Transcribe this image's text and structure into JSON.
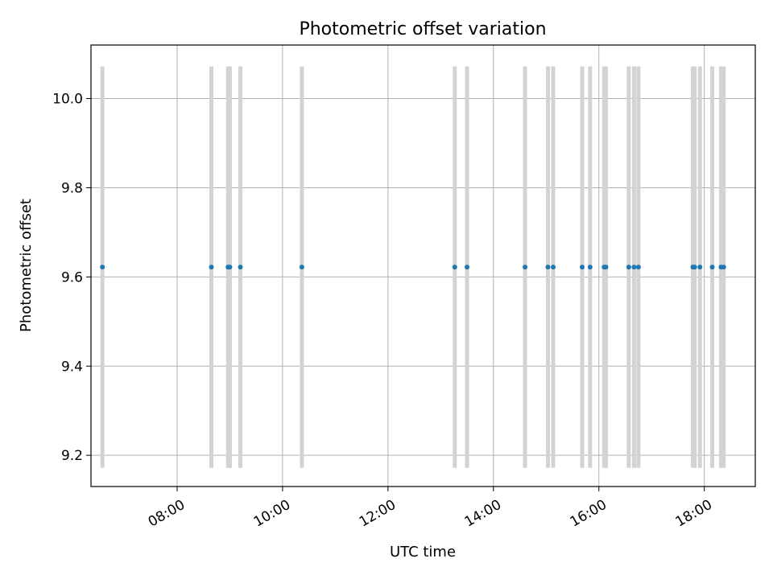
{
  "chart_data": {
    "type": "scatter",
    "title": "Photometric offset variation",
    "xlabel": "UTC time",
    "ylabel": "Photometric offset",
    "xlim": [
      "06:22",
      "18:58"
    ],
    "ylim": [
      9.13,
      10.12
    ],
    "grid": true,
    "x_ticks": [
      "08:00",
      "10:00",
      "12:00",
      "14:00",
      "16:00",
      "18:00"
    ],
    "y_ticks": [
      "9.2",
      "9.4",
      "9.6",
      "9.8",
      "10.0"
    ],
    "point_color": "#1f77b4",
    "errorbar_color": "#d3d3d3",
    "series": [
      {
        "points": [
          {
            "x": "06:35",
            "y": 9.622,
            "err": 0.45
          },
          {
            "x": "08:39",
            "y": 9.622,
            "err": 0.45
          },
          {
            "x": "08:58",
            "y": 9.622,
            "err": 0.45
          },
          {
            "x": "09:00",
            "y": 9.622,
            "err": 0.45
          },
          {
            "x": "09:12",
            "y": 9.622,
            "err": 0.45
          },
          {
            "x": "10:22",
            "y": 9.622,
            "err": 0.45
          },
          {
            "x": "13:16",
            "y": 9.622,
            "err": 0.45
          },
          {
            "x": "13:30",
            "y": 9.622,
            "err": 0.45
          },
          {
            "x": "14:36",
            "y": 9.622,
            "err": 0.45
          },
          {
            "x": "15:02",
            "y": 9.622,
            "err": 0.45
          },
          {
            "x": "15:08",
            "y": 9.622,
            "err": 0.45
          },
          {
            "x": "15:41",
            "y": 9.622,
            "err": 0.45
          },
          {
            "x": "15:50",
            "y": 9.622,
            "err": 0.45
          },
          {
            "x": "16:06",
            "y": 9.622,
            "err": 0.45
          },
          {
            "x": "16:08",
            "y": 9.622,
            "err": 0.45
          },
          {
            "x": "16:34",
            "y": 9.622,
            "err": 0.45
          },
          {
            "x": "16:40",
            "y": 9.622,
            "err": 0.45
          },
          {
            "x": "16:45",
            "y": 9.622,
            "err": 0.45
          },
          {
            "x": "17:47",
            "y": 9.622,
            "err": 0.45
          },
          {
            "x": "17:49",
            "y": 9.622,
            "err": 0.45
          },
          {
            "x": "17:55",
            "y": 9.622,
            "err": 0.45
          },
          {
            "x": "18:09",
            "y": 9.622,
            "err": 0.45
          },
          {
            "x": "18:19",
            "y": 9.622,
            "err": 0.45
          },
          {
            "x": "18:22",
            "y": 9.622,
            "err": 0.45
          }
        ]
      }
    ]
  }
}
